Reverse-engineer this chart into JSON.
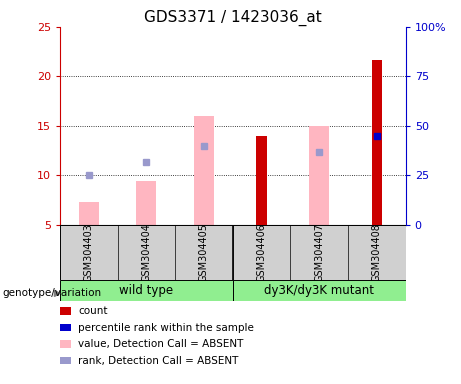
{
  "title": "GDS3371 / 1423036_at",
  "samples": [
    "GSM304403",
    "GSM304404",
    "GSM304405",
    "GSM304406",
    "GSM304407",
    "GSM304408"
  ],
  "group_labels": [
    "wild type",
    "dy3K/dy3K mutant"
  ],
  "left_ylim": [
    5,
    25
  ],
  "right_ylim": [
    0,
    100
  ],
  "left_yticks": [
    5,
    10,
    15,
    20,
    25
  ],
  "right_yticks": [
    0,
    25,
    50,
    75,
    100
  ],
  "right_yticklabels": [
    "0",
    "25",
    "50",
    "75",
    "100%"
  ],
  "pink_bar_values": [
    7.3,
    9.4,
    16.0,
    null,
    15.0,
    null
  ],
  "blue_square_values": [
    10.0,
    11.3,
    13.0,
    null,
    12.3,
    null
  ],
  "red_bar_values": [
    null,
    null,
    null,
    14.0,
    null,
    21.7
  ],
  "blue_square2_values": [
    null,
    null,
    null,
    null,
    null,
    14.0
  ],
  "pink_color": "#ffb6c1",
  "blue_sq_color": "#9999cc",
  "red_color": "#cc0000",
  "blue_sq2_color": "#0000cc",
  "bar_width": 0.35,
  "red_bar_width": 0.18,
  "legend_items": [
    {
      "label": "count",
      "color": "#cc0000"
    },
    {
      "label": "percentile rank within the sample",
      "color": "#0000cc"
    },
    {
      "label": "value, Detection Call = ABSENT",
      "color": "#ffb6c1"
    },
    {
      "label": "rank, Detection Call = ABSENT",
      "color": "#9999cc"
    }
  ],
  "genotype_label": "genotype/variation",
  "left_ycolor": "#cc0000",
  "right_ycolor": "#0000cc",
  "title_fontsize": 11,
  "tick_fontsize": 8,
  "sample_fontsize": 7,
  "group_fontsize": 8.5,
  "legend_fontsize": 7.5,
  "gray_color": "#d0d0d0",
  "green_color": "#90ee90"
}
